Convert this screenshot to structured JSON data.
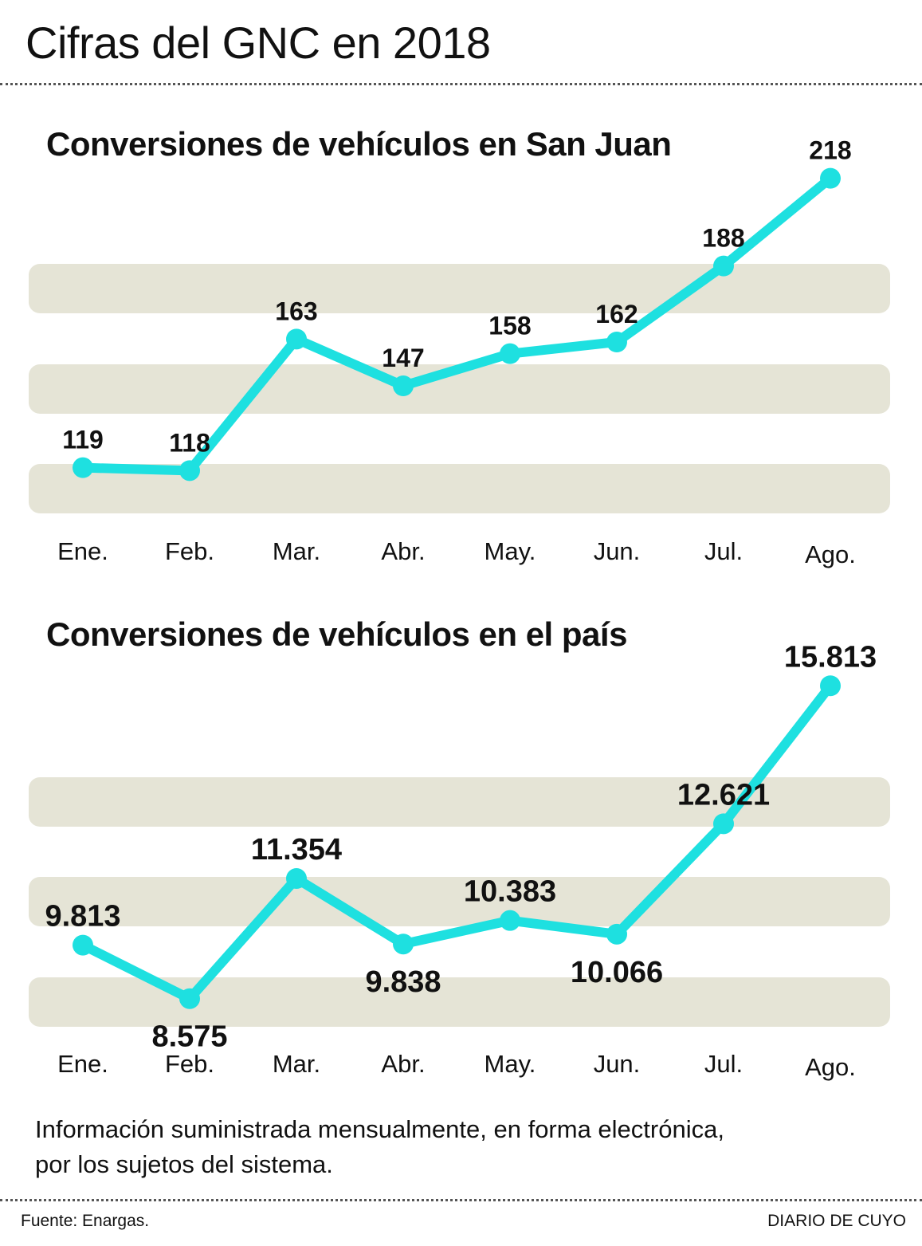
{
  "header": {
    "title": "Cifras del GNC en 2018"
  },
  "chart_data": [
    {
      "type": "line",
      "title": "Conversiones de vehículos en San Juan",
      "categories": [
        "Ene.",
        "Feb.",
        "Mar.",
        "Abr.",
        "May.",
        "Jun.",
        "Jul.",
        "Ago."
      ],
      "values": [
        119,
        118,
        163,
        147,
        158,
        162,
        188,
        218
      ],
      "value_labels": [
        "119",
        "118",
        "163",
        "147",
        "158",
        "162",
        "188",
        "218"
      ],
      "label_positions": [
        "above",
        "above",
        "above",
        "above",
        "above",
        "above",
        "above",
        "above"
      ],
      "ylim": [
        105,
        225
      ],
      "xlabel": "",
      "ylabel": "",
      "grid": "horizontal bands",
      "color": "#1ee0e0"
    },
    {
      "type": "line",
      "title": "Conversiones de vehículos en el país",
      "categories": [
        "Ene.",
        "Feb.",
        "Mar.",
        "Abr.",
        "May.",
        "Jun.",
        "Jul.",
        "Ago."
      ],
      "values": [
        9813,
        8575,
        11354,
        9838,
        10383,
        10066,
        12621,
        15813
      ],
      "value_labels": [
        "9.813",
        "8.575",
        "11.354",
        "9.838",
        "10.383",
        "10.066",
        "12.621",
        "15.813"
      ],
      "label_positions": [
        "above",
        "below",
        "above",
        "below",
        "above",
        "below",
        "above",
        "above"
      ],
      "ylim": [
        7500,
        16500
      ],
      "xlabel": "",
      "ylabel": "",
      "grid": "horizontal bands",
      "color": "#1ee0e0"
    }
  ],
  "note": {
    "line1": "Información suministrada mensualmente, en forma electrónica,",
    "line2": "por los sujetos del sistema."
  },
  "footer": {
    "source": "Fuente: Enargas.",
    "brand": "DIARIO DE CUYO"
  }
}
